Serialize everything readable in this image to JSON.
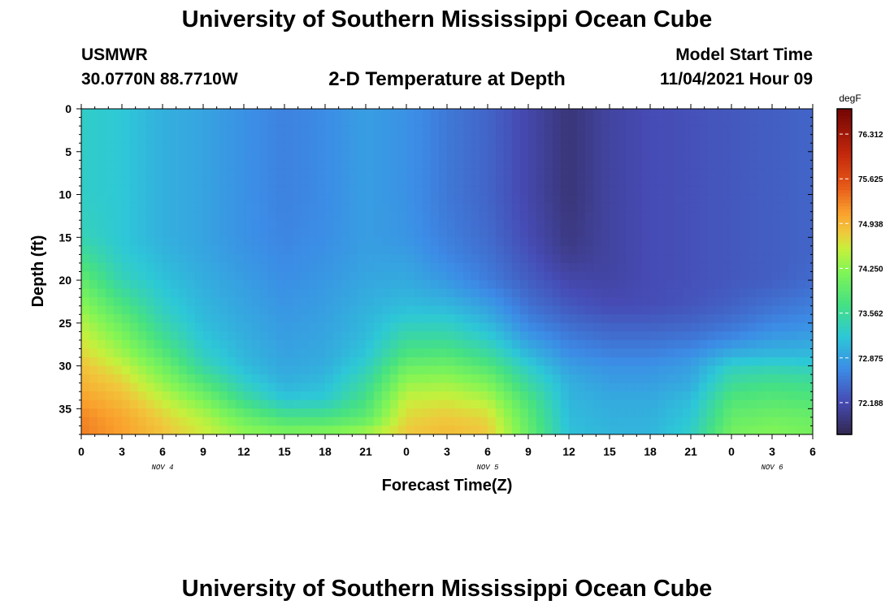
{
  "header": {
    "title": "University of Southern Mississippi Ocean Cube",
    "station": "USMWR",
    "coords": "30.0770N  88.7710W",
    "subtitle": "2-D Temperature at Depth",
    "model_start_label": "Model Start Time",
    "model_start_value": "11/04/2021 Hour 09"
  },
  "footer": {
    "title": "University of Southern Mississippi Ocean Cube"
  },
  "chart_data": {
    "type": "heatmap",
    "xlabel": "Forecast Time(Z)",
    "ylabel": "Depth (ft)",
    "x_tick_labels": [
      "0",
      "3",
      "6",
      "9",
      "12",
      "15",
      "18",
      "21",
      "0",
      "3",
      "6",
      "9",
      "12",
      "15",
      "18",
      "21",
      "0",
      "3",
      "6"
    ],
    "date_labels": [
      {
        "label": "NOV 4",
        "tick_index": 2
      },
      {
        "label": "NOV 5",
        "tick_index": 10
      },
      {
        "label": "NOV 6",
        "tick_index": 17
      }
    ],
    "y_ticks": [
      0,
      5,
      10,
      15,
      20,
      25,
      30,
      35
    ],
    "ylim": [
      0,
      38
    ],
    "y_inverted": true,
    "x_hours": [
      0,
      3,
      6,
      9,
      12,
      15,
      18,
      21,
      24,
      27,
      30,
      33,
      36,
      39,
      42,
      45,
      48,
      51,
      54
    ],
    "depths_ft": [
      0,
      5,
      10,
      15,
      17,
      20,
      23,
      25,
      27,
      29,
      30,
      32,
      34,
      36,
      38
    ],
    "temperature_degF": [
      [
        73.3,
        73.2,
        73.0,
        72.9,
        72.75,
        72.62,
        72.7,
        72.85,
        72.75,
        72.55,
        72.4,
        72.15,
        71.9,
        72.1,
        72.2,
        72.25,
        72.3,
        72.35,
        72.4
      ],
      [
        73.3,
        73.2,
        73.0,
        72.9,
        72.75,
        72.62,
        72.7,
        72.85,
        72.75,
        72.55,
        72.4,
        72.15,
        71.9,
        72.1,
        72.2,
        72.25,
        72.3,
        72.35,
        72.4
      ],
      [
        73.3,
        73.2,
        73.0,
        72.9,
        72.75,
        72.62,
        72.7,
        72.85,
        72.75,
        72.55,
        72.4,
        72.15,
        71.9,
        72.1,
        72.2,
        72.25,
        72.3,
        72.35,
        72.4
      ],
      [
        73.4,
        73.2,
        73.0,
        72.9,
        72.75,
        72.65,
        72.72,
        72.85,
        72.78,
        72.6,
        72.45,
        72.2,
        71.95,
        72.1,
        72.2,
        72.25,
        72.3,
        72.35,
        72.4
      ],
      [
        73.6,
        73.25,
        73.05,
        72.92,
        72.78,
        72.68,
        72.75,
        72.87,
        72.85,
        72.65,
        72.5,
        72.25,
        72.0,
        72.1,
        72.2,
        72.25,
        72.3,
        72.35,
        72.4
      ],
      [
        73.95,
        73.4,
        73.15,
        72.98,
        72.85,
        72.72,
        72.8,
        72.92,
        72.95,
        72.8,
        72.58,
        72.35,
        72.15,
        72.12,
        72.2,
        72.25,
        72.3,
        72.35,
        72.45
      ],
      [
        74.25,
        73.75,
        73.3,
        73.05,
        72.9,
        72.78,
        72.85,
        73.0,
        73.1,
        73.05,
        72.85,
        72.5,
        72.3,
        72.2,
        72.22,
        72.28,
        72.38,
        72.5,
        72.6
      ],
      [
        74.45,
        74.0,
        73.45,
        73.1,
        72.95,
        72.82,
        72.88,
        73.05,
        73.3,
        73.3,
        73.05,
        72.65,
        72.45,
        72.35,
        72.35,
        72.4,
        72.5,
        72.65,
        72.72
      ],
      [
        74.6,
        74.2,
        73.65,
        73.2,
        73.0,
        72.85,
        72.92,
        73.1,
        73.55,
        73.55,
        73.3,
        72.85,
        72.6,
        72.5,
        72.5,
        72.55,
        72.7,
        72.85,
        72.9
      ],
      [
        74.75,
        74.4,
        73.9,
        73.35,
        73.05,
        72.9,
        72.95,
        73.2,
        73.8,
        73.85,
        73.6,
        73.1,
        72.75,
        72.65,
        72.65,
        72.75,
        73.05,
        73.1,
        73.1
      ],
      [
        74.85,
        74.55,
        74.05,
        73.45,
        73.1,
        72.92,
        72.98,
        73.3,
        74.0,
        74.05,
        73.8,
        73.25,
        72.85,
        72.75,
        72.75,
        72.85,
        73.3,
        73.35,
        73.3
      ],
      [
        74.95,
        74.75,
        74.3,
        73.8,
        73.3,
        73.0,
        73.1,
        73.5,
        74.3,
        74.35,
        74.15,
        73.5,
        73.0,
        72.85,
        72.85,
        72.95,
        73.55,
        73.65,
        73.6
      ],
      [
        75.1,
        74.9,
        74.55,
        74.15,
        73.6,
        73.2,
        73.25,
        73.7,
        74.55,
        74.6,
        74.45,
        73.75,
        73.05,
        72.95,
        72.95,
        73.1,
        73.8,
        73.85,
        73.8
      ],
      [
        75.25,
        75.05,
        74.75,
        74.45,
        74.0,
        73.7,
        73.7,
        73.9,
        74.7,
        74.8,
        74.7,
        73.9,
        73.1,
        73.0,
        73.0,
        73.2,
        73.95,
        74.05,
        74.0
      ],
      [
        75.3,
        75.1,
        74.85,
        74.6,
        74.3,
        74.2,
        74.25,
        74.4,
        74.8,
        74.9,
        74.8,
        74.0,
        73.15,
        73.05,
        73.05,
        73.3,
        74.1,
        74.2,
        74.1
      ]
    ],
    "colorbar": {
      "label": "degF",
      "tick_labels": [
        "76.312",
        "75.625",
        "74.938",
        "74.250",
        "73.562",
        "72.875",
        "72.188"
      ],
      "tick_values": [
        76.312,
        75.625,
        74.938,
        74.25,
        73.562,
        72.875,
        72.188
      ],
      "range": [
        71.7,
        76.7
      ]
    }
  }
}
